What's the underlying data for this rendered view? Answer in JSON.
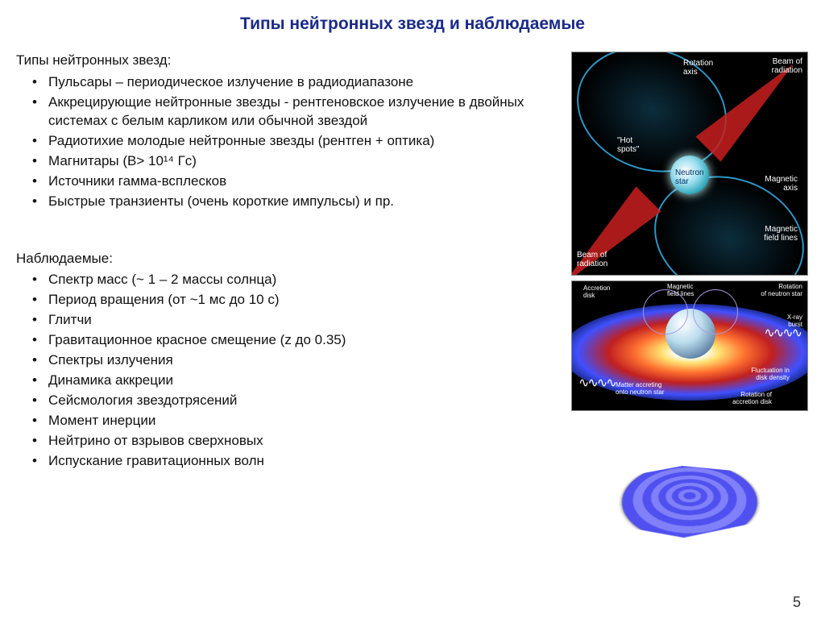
{
  "title": {
    "text": "Типы нейтронных звезд и наблюдаемые",
    "color": "#1a2a8a"
  },
  "types_header": "Типы нейтронных звезд:",
  "types": [
    "Пульсары – периодическое излучение в радиодиапазоне",
    "Аккрецирующие нейтронные звезды  - рентгеновское излучение в двойных системах с белым карликом или обычной звездой",
    "Радиотихие молодые нейтронные звезды (рентген + оптика)",
    "Магнитары (B> 10¹⁴ Гс)",
    "Источники гамма-всплесков",
    "Быстрые транзиенты (очень короткие импульсы) и пр."
  ],
  "obs_header": "Наблюдаемые:",
  "observables": [
    "Спектр масс (~ 1 – 2 массы солнца)",
    "Период вращения (от ~1 мс до 10 с)",
    "Глитчи",
    "Гравитационное красное смещение (z до 0.35)",
    "Спектры излучения",
    "Динамика аккреции",
    "Сейсмология звездотрясений",
    "Момент инерции",
    "Нейтрино от взрывов сверхновых",
    "Испускание гравитационных волн"
  ],
  "text_color": "#111111",
  "diagram1_labels": {
    "rotation_axis": "Rotation\naxis",
    "beam_top": "Beam of\nradiation",
    "beam_bot": "Beam of\nradiation",
    "hot_spots": "\"Hot\nspots\"",
    "neutron_star": "Neutron\nstar",
    "magnetic_axis": "Magnetic\naxis",
    "field_lines": "Magnetic\nfield lines"
  },
  "diagram2_labels": {
    "accretion": "Accretion\ndisk",
    "field": "Magnetic\nfield lines",
    "rotation": "Rotation\nof neutron star",
    "xray": "X-ray\nburst",
    "matter": "Matter accreting\nonto neutron star",
    "fluct": "Fluctuation in\ndisk density",
    "rot_disk": "Rotation of\naccretion disk"
  },
  "page_number": "5"
}
